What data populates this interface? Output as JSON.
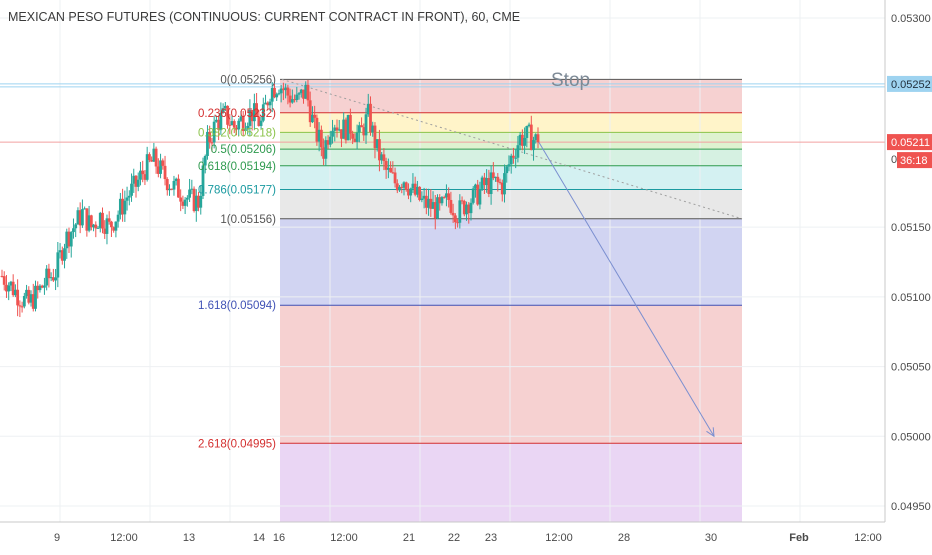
{
  "header": {
    "title": "MEXICAN PESO FUTURES (CONTINUOUS: CURRENT CONTRACT IN FRONT), 60, CME"
  },
  "annotation": {
    "stop_label": "Stop"
  },
  "colors": {
    "up": "#26a69a",
    "down": "#ef5350",
    "fib_line_red": "#ef5350",
    "fib_line_blue": "#3f51b5",
    "axis_text": "#4a4a4a",
    "grid": "#eef0f3",
    "stop_line": "#9ed3f0",
    "arrow": "#7b8fd0",
    "trendline": "#9e9e9e"
  },
  "chart_data": {
    "type": "candlestick",
    "title": "MEXICAN PESO FUTURES (CONTINUOUS: CURRENT CONTRACT IN FRONT), 60, CME",
    "ylim": [
      0.04925,
      0.05325
    ],
    "y_ticks": [
      "0.05300",
      "0.05250",
      "0.05150",
      "0.05100",
      "0.05050",
      "0.05000",
      "0.04950"
    ],
    "x_ticks": [
      "9",
      "12:00",
      "13",
      "14",
      "16",
      "12:00",
      "21",
      "22",
      "23",
      "12:00",
      "28",
      "30",
      "Feb",
      "12:00"
    ],
    "price_labels": [
      {
        "value": 0.05252,
        "label": "0.05252",
        "kind": "stop"
      },
      {
        "value": 0.0525,
        "label": "0.05250",
        "kind": "tick"
      },
      {
        "value": 0.05211,
        "label": "0.05211",
        "kind": "current"
      }
    ],
    "countdown": "36:18",
    "fibonacci": {
      "high": 0.05256,
      "low": 0.05156,
      "levels": [
        {
          "ratio": "0",
          "value": 0.05256,
          "label": "0(0.05256)",
          "color": "#555555"
        },
        {
          "ratio": "0.236",
          "value": 0.05232,
          "label": "0.236(0.05232)",
          "color": "#d32f2f"
        },
        {
          "ratio": "0.382",
          "value": 0.05218,
          "label": "0.382(0.05218)",
          "color": "#8bc34a"
        },
        {
          "ratio": "0.5",
          "value": 0.05206,
          "label": "0.5(0.05206)",
          "color": "#2e9a4e"
        },
        {
          "ratio": "0.618",
          "value": 0.05194,
          "label": "0.618(0.05194)",
          "color": "#2e9a4e"
        },
        {
          "ratio": "0.786",
          "value": 0.05177,
          "label": "0.786(0.05177)",
          "color": "#1a9aa0"
        },
        {
          "ratio": "1",
          "value": 0.05156,
          "label": "1(0.05156)",
          "color": "#555555"
        },
        {
          "ratio": "1.618",
          "value": 0.05094,
          "label": "1.618(0.05094)",
          "color": "#3f51b5"
        },
        {
          "ratio": "2.618",
          "value": 0.04995,
          "label": "2.618(0.04995)",
          "color": "#d32f2f"
        }
      ]
    },
    "stop_level": 0.05252,
    "projection": {
      "from_value": 0.05212,
      "to_value": 0.05
    },
    "price_path": [
      0.05115,
      0.05108,
      0.051,
      0.05095,
      0.05103,
      0.05112,
      0.05118,
      0.0514,
      0.0515,
      0.0516,
      0.0515,
      0.05158,
      0.0515,
      0.0516,
      0.05172,
      0.0518,
      0.05192,
      0.05198,
      0.05188,
      0.0518,
      0.05175,
      0.0517,
      0.05168,
      0.0521,
      0.05225,
      0.0523,
      0.05222,
      0.05228,
      0.05232,
      0.05224,
      0.05248,
      0.05253,
      0.05245,
      0.0524,
      0.05248,
      0.0522,
      0.05205,
      0.05228,
      0.0522,
      0.05222,
      0.05215,
      0.0523,
      0.05205,
      0.0519,
      0.05182,
      0.05185,
      0.05175,
      0.05168,
      0.05165,
      0.05162,
      0.0517,
      0.0516,
      0.05168,
      0.05172,
      0.0518,
      0.05182,
      0.0518,
      0.052,
      0.05214,
      0.05215,
      0.05211
    ]
  }
}
